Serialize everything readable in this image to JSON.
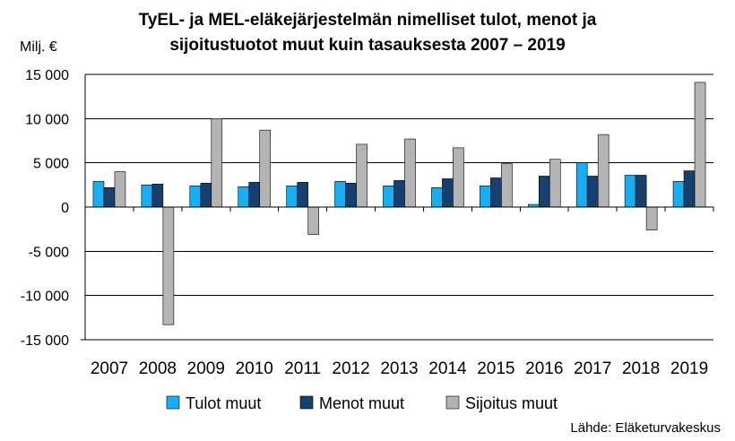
{
  "chart_data": {
    "type": "bar",
    "title": "TyEL- ja MEL-eläkejärjestelmän nimelliset tulot, menot ja sijoitustuotot muut kuin tasauksesta 2007 – 2019",
    "title_lines": [
      "TyEL- ja MEL-eläkejärjestelmän nimelliset tulot, menot ja",
      "sijoitustuotot muut kuin tasauksesta 2007 – 2019"
    ],
    "ylabel": "Milj. €",
    "source": "Lähde: Eläketurvakeskus",
    "categories": [
      "2007",
      "2008",
      "2009",
      "2010",
      "2011",
      "2012",
      "2013",
      "2014",
      "2015",
      "2016",
      "2017",
      "2018",
      "2019"
    ],
    "series": [
      {
        "name": "Tulot muut",
        "color": "#1aaef0",
        "values": [
          2900,
          2500,
          2400,
          2300,
          2400,
          2900,
          2400,
          2200,
          2400,
          300,
          5000,
          3600,
          2900
        ]
      },
      {
        "name": "Menot muut",
        "color": "#17406f",
        "values": [
          2200,
          2600,
          2700,
          2800,
          2800,
          2700,
          3000,
          3200,
          3300,
          3500,
          3500,
          3600,
          4100
        ]
      },
      {
        "name": "Sijoitus muut",
        "color": "#b4b4b4",
        "values": [
          4000,
          -13300,
          10000,
          8700,
          -3100,
          7100,
          7700,
          6700,
          4900,
          5400,
          8200,
          -2600,
          14100
        ]
      }
    ],
    "ylim": [
      -15000,
      15000
    ],
    "yticks": [
      15000,
      10000,
      5000,
      0,
      -5000,
      -10000,
      -15000
    ],
    "ytick_labels": [
      "15 000",
      "10 000",
      "5 000",
      "0",
      "-5 000",
      "-10 000",
      "-15 000"
    ],
    "grid": true,
    "legend_position": "bottom"
  }
}
